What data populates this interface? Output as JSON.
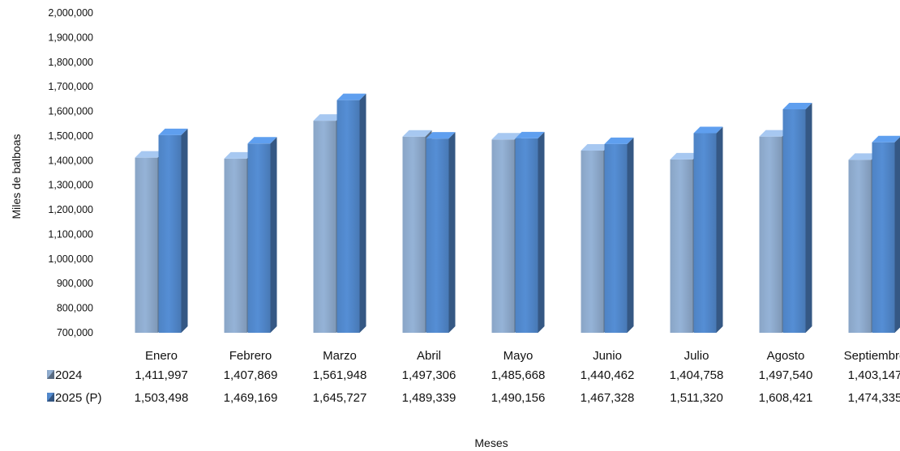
{
  "chart_data": {
    "type": "bar",
    "ylabel": "Miles de balboas",
    "xlabel": "Meses",
    "ylim": [
      700000,
      2000000
    ],
    "y_ticks": [
      "700,000",
      "800,000",
      "900,000",
      "1,000,000",
      "1,100,000",
      "1,200,000",
      "1,300,000",
      "1,400,000",
      "1,500,000",
      "1,600,000",
      "1,700,000",
      "1,800,000",
      "1,900,000",
      "2,000,000"
    ],
    "categories": [
      "Enero",
      "Febrero",
      "Marzo",
      "Abril",
      "Mayo",
      "Junio",
      "Julio",
      "Agosto",
      "Septiembre"
    ],
    "series": [
      {
        "name": "2024",
        "color": "#95b3d7",
        "values": [
          1411997,
          1407869,
          1561948,
          1497306,
          1485668,
          1440462,
          1404758,
          1497540,
          1403147
        ],
        "labels": [
          "1,411,997",
          "1,407,869",
          "1,561,948",
          "1,497,306",
          "1,485,668",
          "1,440,462",
          "1,404,758",
          "1,497,540",
          "1,403,147"
        ]
      },
      {
        "name": "2025 (P)",
        "color": "#558ed5",
        "values": [
          1503498,
          1469169,
          1645727,
          1489339,
          1490156,
          1467328,
          1511320,
          1608421,
          1474335
        ],
        "labels": [
          "1,503,498",
          "1,469,169",
          "1,645,727",
          "1,489,339",
          "1,490,156",
          "1,467,328",
          "1,511,320",
          "1,608,421",
          "1,474,335"
        ]
      }
    ],
    "grid": false,
    "legend": "data-table-left"
  }
}
